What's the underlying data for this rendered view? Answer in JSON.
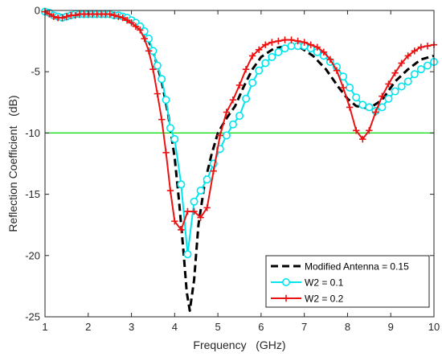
{
  "chart_data": {
    "type": "line",
    "title": "",
    "xlabel": "Frequency   (GHz)",
    "ylabel": "Reflection Coefficient   (dB)",
    "xlim": [
      1,
      10
    ],
    "ylim": [
      -25,
      0
    ],
    "xticks": [
      1,
      2,
      3,
      4,
      5,
      6,
      7,
      8,
      9,
      10
    ],
    "yticks": [
      0,
      -5,
      -10,
      -15,
      -20,
      -25
    ],
    "grid": false,
    "legend_position": "bottom-right",
    "reference_line": {
      "y": -10,
      "color": "#00dd00"
    },
    "series": [
      {
        "name": "Modified Antenna = 0.15",
        "color": "#000000",
        "style": "dashed",
        "marker": "none",
        "x": [
          1.0,
          1.4,
          1.8,
          2.2,
          2.6,
          3.0,
          3.3,
          3.5,
          3.7,
          3.85,
          4.0,
          4.1,
          4.2,
          4.28,
          4.35,
          4.45,
          4.55,
          4.7,
          4.85,
          5.0,
          5.2,
          5.4,
          5.6,
          5.8,
          6.0,
          6.3,
          6.6,
          6.9,
          7.2,
          7.5,
          7.8,
          8.0,
          8.2,
          8.5,
          8.8,
          9.1,
          9.4,
          9.7,
          10.0
        ],
        "y": [
          -0.1,
          -0.4,
          -0.3,
          -0.3,
          -0.4,
          -0.8,
          -1.7,
          -3.3,
          -5.8,
          -8.5,
          -12.0,
          -15.5,
          -19.5,
          -23.0,
          -24.5,
          -22.0,
          -17.5,
          -14.0,
          -11.8,
          -10.0,
          -8.8,
          -7.8,
          -6.2,
          -4.8,
          -3.8,
          -3.1,
          -2.9,
          -3.0,
          -3.7,
          -4.8,
          -6.3,
          -7.2,
          -7.8,
          -8.0,
          -7.3,
          -5.8,
          -4.8,
          -4.0,
          -3.7
        ]
      },
      {
        "name": "W2 = 0.1",
        "color": "#00e5ee",
        "style": "solid",
        "marker": "circle",
        "x": [
          1.0,
          1.1,
          1.2,
          1.3,
          1.4,
          1.5,
          1.6,
          1.7,
          1.8,
          1.9,
          2.0,
          2.1,
          2.2,
          2.3,
          2.4,
          2.5,
          2.6,
          2.7,
          2.8,
          2.9,
          3.0,
          3.1,
          3.2,
          3.3,
          3.4,
          3.5,
          3.6,
          3.7,
          3.8,
          3.9,
          4.0,
          4.15,
          4.3,
          4.45,
          4.6,
          4.75,
          4.9,
          5.05,
          5.2,
          5.35,
          5.5,
          5.65,
          5.8,
          5.95,
          6.1,
          6.25,
          6.4,
          6.55,
          6.7,
          6.85,
          7.0,
          7.15,
          7.3,
          7.45,
          7.6,
          7.75,
          7.9,
          8.05,
          8.2,
          8.35,
          8.5,
          8.65,
          8.8,
          8.95,
          9.1,
          9.25,
          9.4,
          9.55,
          9.7,
          9.85,
          10.0
        ],
        "y": [
          -0.1,
          -0.2,
          -0.4,
          -0.5,
          -0.6,
          -0.5,
          -0.4,
          -0.3,
          -0.3,
          -0.3,
          -0.3,
          -0.3,
          -0.3,
          -0.3,
          -0.3,
          -0.3,
          -0.4,
          -0.4,
          -0.5,
          -0.6,
          -0.8,
          -1.0,
          -1.3,
          -1.7,
          -2.3,
          -3.3,
          -4.5,
          -5.6,
          -7.3,
          -9.6,
          -10.5,
          -14.2,
          -19.9,
          -15.6,
          -14.7,
          -13.8,
          -12.5,
          -11.3,
          -10.2,
          -9.3,
          -8.6,
          -7.2,
          -5.9,
          -4.9,
          -4.3,
          -3.8,
          -3.4,
          -3.1,
          -2.9,
          -2.9,
          -2.9,
          -3.1,
          -3.4,
          -3.7,
          -4.2,
          -4.6,
          -5.4,
          -6.3,
          -7.1,
          -7.7,
          -7.9,
          -8.2,
          -7.9,
          -7.2,
          -6.6,
          -6.2,
          -5.8,
          -5.2,
          -4.8,
          -4.5,
          -4.2
        ]
      },
      {
        "name": "W2 = 0.2",
        "color": "#ee1111",
        "style": "solid",
        "marker": "plus",
        "x": [
          1.0,
          1.1,
          1.2,
          1.3,
          1.4,
          1.5,
          1.6,
          1.7,
          1.8,
          1.9,
          2.0,
          2.1,
          2.2,
          2.3,
          2.4,
          2.5,
          2.6,
          2.7,
          2.8,
          2.9,
          3.0,
          3.1,
          3.2,
          3.3,
          3.4,
          3.5,
          3.6,
          3.7,
          3.8,
          3.9,
          4.0,
          4.15,
          4.3,
          4.45,
          4.6,
          4.75,
          4.9,
          5.05,
          5.2,
          5.35,
          5.5,
          5.65,
          5.8,
          5.95,
          6.1,
          6.25,
          6.4,
          6.55,
          6.7,
          6.85,
          7.0,
          7.15,
          7.3,
          7.45,
          7.6,
          7.75,
          7.9,
          8.05,
          8.2,
          8.35,
          8.5,
          8.65,
          8.8,
          8.95,
          9.1,
          9.25,
          9.4,
          9.55,
          9.7,
          9.85,
          10.0
        ],
        "y": [
          -0.1,
          -0.3,
          -0.5,
          -0.6,
          -0.6,
          -0.5,
          -0.4,
          -0.4,
          -0.3,
          -0.3,
          -0.3,
          -0.3,
          -0.3,
          -0.3,
          -0.3,
          -0.3,
          -0.4,
          -0.5,
          -0.6,
          -0.8,
          -1.0,
          -1.3,
          -1.6,
          -2.3,
          -3.3,
          -4.8,
          -6.8,
          -8.9,
          -11.6,
          -14.7,
          -17.2,
          -17.9,
          -16.4,
          -16.4,
          -16.9,
          -16.1,
          -13.1,
          -10.2,
          -8.3,
          -7.3,
          -6.1,
          -4.8,
          -3.7,
          -3.2,
          -2.8,
          -2.6,
          -2.5,
          -2.4,
          -2.4,
          -2.5,
          -2.6,
          -2.8,
          -3.0,
          -3.4,
          -4.0,
          -4.9,
          -6.3,
          -7.9,
          -9.8,
          -10.5,
          -9.8,
          -8.3,
          -7.0,
          -6.0,
          -5.1,
          -4.3,
          -3.7,
          -3.3,
          -3.0,
          -2.9,
          -2.8
        ]
      }
    ]
  }
}
